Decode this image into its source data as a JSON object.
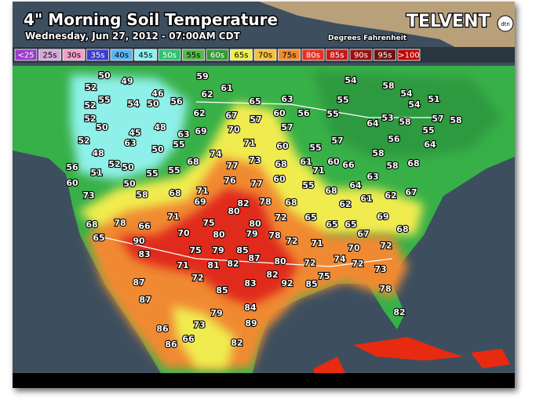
{
  "header": {
    "title": "4\" Morning Soil Temperature",
    "subtitle": "Wednesday, Jun 27, 2012 - 07:00AM CDT",
    "units": "Degrees Fahrenheit",
    "brand": "TELVENT",
    "brand_mark": "dtn"
  },
  "legend": [
    {
      "label": "<25",
      "color": "#9a3cc8"
    },
    {
      "label": "25s",
      "color": "#d7a6d8"
    },
    {
      "label": "30s",
      "color": "#f2a0c8"
    },
    {
      "label": "35s",
      "color": "#3a3ccc"
    },
    {
      "label": "40s",
      "color": "#5ab4f0"
    },
    {
      "label": "45s",
      "color": "#8ef0f0"
    },
    {
      "label": "50s",
      "color": "#30c070"
    },
    {
      "label": "55s",
      "color": "#58b848"
    },
    {
      "label": "60s",
      "color": "#389838"
    },
    {
      "label": "65s",
      "color": "#f0f050"
    },
    {
      "label": "70s",
      "color": "#f4c040"
    },
    {
      "label": "75s",
      "color": "#f08a30"
    },
    {
      "label": "80s",
      "color": "#e83020"
    },
    {
      "label": "85s",
      "color": "#c81818"
    },
    {
      "label": "90s",
      "color": "#981010"
    },
    {
      "label": "95s",
      "color": "#701010"
    },
    {
      "label": ">100",
      "color": "#c00808"
    }
  ],
  "stations": [
    50,
    49,
    59,
    54,
    58,
    52,
    46,
    62,
    61,
    54,
    51,
    55,
    54,
    50,
    56,
    65,
    63,
    55,
    54,
    52,
    62,
    67,
    57,
    60,
    56,
    55,
    53,
    58,
    57,
    58,
    52,
    50,
    45,
    48,
    63,
    69,
    70,
    57,
    64,
    55,
    52,
    63,
    55,
    71,
    60,
    55,
    57,
    56,
    64,
    48,
    50,
    74,
    73,
    58,
    68,
    61,
    60,
    66,
    52,
    50,
    68,
    77,
    58,
    56,
    51,
    55,
    55,
    71,
    63,
    68,
    60,
    50,
    76,
    77,
    60,
    55,
    68,
    64,
    62,
    73,
    58,
    68,
    71,
    78,
    69,
    82,
    61,
    62,
    67,
    80,
    68,
    72,
    69,
    71,
    65,
    68,
    78,
    66,
    75,
    80,
    65,
    65,
    67,
    68,
    70,
    80,
    79,
    78,
    72,
    90,
    65,
    71,
    75,
    79,
    85,
    70,
    72,
    83,
    87,
    81,
    82,
    72,
    80,
    74,
    72,
    71,
    73,
    82,
    75,
    87,
    72,
    83,
    92,
    85,
    78,
    85,
    87,
    84,
    82,
    79,
    86,
    73,
    89,
    86,
    66,
    82
  ]
}
